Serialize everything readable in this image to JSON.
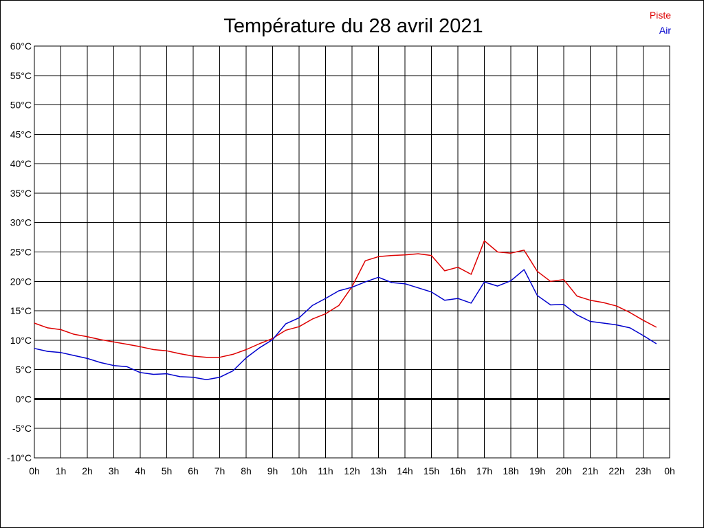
{
  "chart_data": {
    "type": "line",
    "title": "Température du 28 avril 2021",
    "xlabel": "",
    "ylabel": "",
    "x_tick_labels": [
      "0h",
      "1h",
      "2h",
      "3h",
      "4h",
      "5h",
      "6h",
      "7h",
      "8h",
      "9h",
      "10h",
      "11h",
      "12h",
      "13h",
      "14h",
      "15h",
      "16h",
      "17h",
      "18h",
      "19h",
      "20h",
      "21h",
      "22h",
      "23h",
      "0h"
    ],
    "y_tick_labels": [
      "60°C",
      "55°C",
      "50°C",
      "45°C",
      "40°C",
      "35°C",
      "30°C",
      "25°C",
      "20°C",
      "15°C",
      "10°C",
      "5°C",
      "0°C",
      "-5°C",
      "-10°C"
    ],
    "y_ticks": [
      60,
      55,
      50,
      45,
      40,
      35,
      30,
      25,
      20,
      15,
      10,
      5,
      0,
      -5,
      -10
    ],
    "xlim": [
      0,
      24
    ],
    "ylim": [
      -10,
      60
    ],
    "grid": true,
    "legend_position": "top-right",
    "x": [
      0,
      0.5,
      1,
      1.5,
      2,
      2.5,
      3,
      3.5,
      4,
      4.5,
      5,
      5.5,
      6,
      6.5,
      7,
      7.5,
      8,
      8.5,
      9,
      9.5,
      10,
      10.5,
      11,
      11.5,
      12,
      12.5,
      13,
      13.5,
      14,
      14.5,
      15,
      15.5,
      16,
      16.5,
      17,
      17.5,
      18,
      18.5,
      19,
      19.5,
      20,
      20.5,
      21,
      21.5,
      22,
      22.5,
      23,
      23.5
    ],
    "series": [
      {
        "name": "Piste",
        "color": "#dd0000",
        "values": [
          12.9,
          12.1,
          11.8,
          11.0,
          10.6,
          10.1,
          9.7,
          9.3,
          8.9,
          8.4,
          8.2,
          7.7,
          7.3,
          7.1,
          7.1,
          7.6,
          8.4,
          9.4,
          10.3,
          11.7,
          12.3,
          13.6,
          14.5,
          15.9,
          19.1,
          23.5,
          24.2,
          24.4,
          24.5,
          24.7,
          24.4,
          21.8,
          22.4,
          21.2,
          26.9,
          25.0,
          24.8,
          25.3,
          21.7,
          20.0,
          20.3,
          17.5,
          16.8,
          16.4,
          15.8,
          14.7,
          13.4,
          12.2
        ]
      },
      {
        "name": "Air",
        "color": "#0000cc",
        "values": [
          8.6,
          8.1,
          7.9,
          7.4,
          6.9,
          6.2,
          5.7,
          5.5,
          4.5,
          4.2,
          4.3,
          3.8,
          3.7,
          3.3,
          3.7,
          4.8,
          7.0,
          8.7,
          10.1,
          12.8,
          13.8,
          15.9,
          17.1,
          18.4,
          19.0,
          19.9,
          20.7,
          19.8,
          19.6,
          18.9,
          18.2,
          16.8,
          17.1,
          16.3,
          19.9,
          19.2,
          20.1,
          22.0,
          17.6,
          16.0,
          16.1,
          14.3,
          13.2,
          12.9,
          12.6,
          12.1,
          10.8,
          9.4
        ]
      }
    ]
  }
}
